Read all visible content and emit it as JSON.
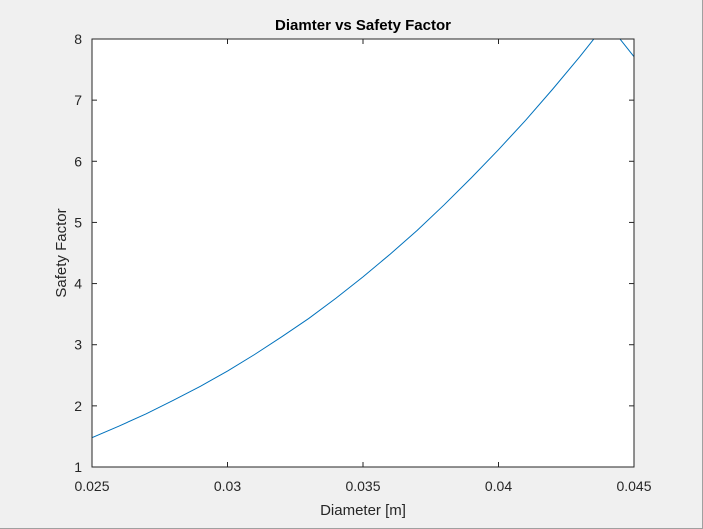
{
  "chart_data": {
    "type": "line",
    "title": "Diamter vs Safety Factor",
    "xlabel": "Diameter [m]",
    "ylabel": "Safety Factor",
    "xlim": [
      0.025,
      0.045
    ],
    "ylim": [
      1,
      8
    ],
    "x_ticks": [
      0.025,
      0.03,
      0.035,
      0.04,
      0.045
    ],
    "x_tick_labels": [
      "0.025",
      "0.03",
      "0.035",
      "0.04",
      "0.045"
    ],
    "y_ticks": [
      1,
      2,
      3,
      4,
      5,
      6,
      7,
      8
    ],
    "y_tick_labels": [
      "1",
      "2",
      "3",
      "4",
      "5",
      "6",
      "7",
      "8"
    ],
    "grid": false,
    "series": [
      {
        "color": "#0072bd",
        "x": [
          0.025,
          0.026,
          0.027,
          0.028,
          0.029,
          0.03,
          0.031,
          0.032,
          0.033,
          0.034,
          0.035,
          0.036,
          0.037,
          0.038,
          0.039,
          0.04,
          0.041,
          0.042,
          0.043,
          0.044,
          0.045
        ],
        "y": [
          1.48,
          1.67,
          1.87,
          2.09,
          2.32,
          2.57,
          2.84,
          3.13,
          3.43,
          3.76,
          4.11,
          4.48,
          4.87,
          5.29,
          5.73,
          6.19,
          6.67,
          7.18,
          7.71,
          8.27,
          7.71
        ]
      }
    ]
  }
}
